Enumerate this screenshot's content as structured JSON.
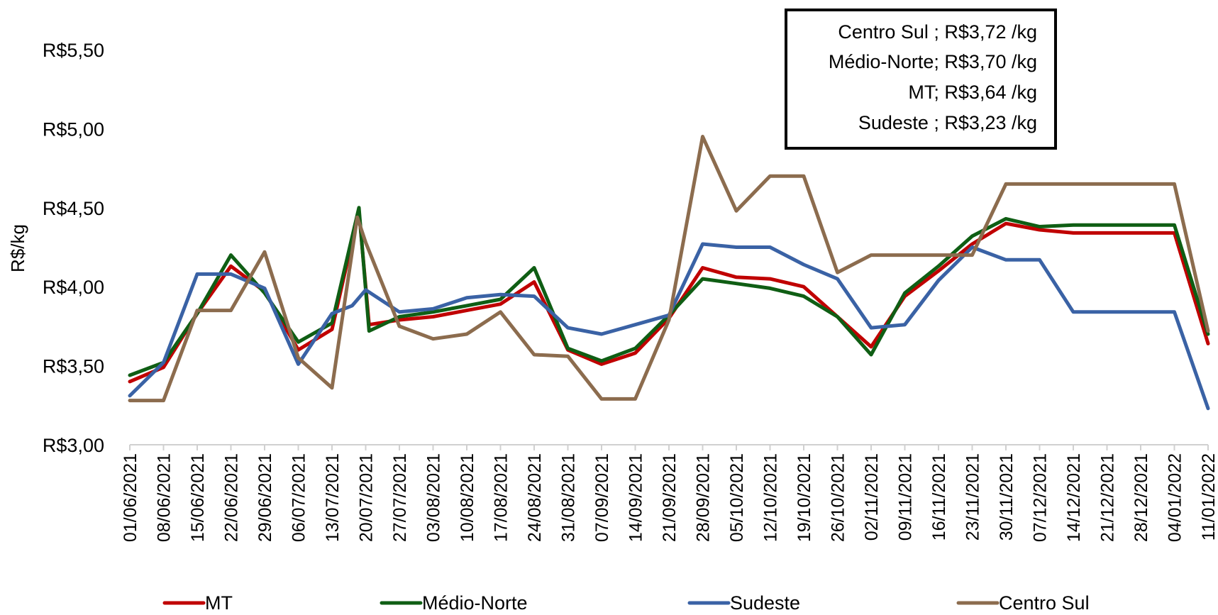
{
  "chart_data": {
    "type": "line",
    "ylabel": "R$/kg",
    "xlabel": "",
    "ylim": [
      3.0,
      5.5
    ],
    "y_ticks": [
      {
        "value": 3.0,
        "label": "R$3,00"
      },
      {
        "value": 3.5,
        "label": "R$3,50"
      },
      {
        "value": 4.0,
        "label": "R$4,00"
      },
      {
        "value": 4.5,
        "label": "R$4,50"
      },
      {
        "value": 5.0,
        "label": "R$5,00"
      },
      {
        "value": 5.5,
        "label": "R$5,50"
      }
    ],
    "categories": [
      "01/06/2021",
      "08/06/2021",
      "15/06/2021",
      "22/06/2021",
      "29/06/2021",
      "06/07/2021",
      "13/07/2021",
      "20/07/2021",
      "27/07/2021",
      "03/08/2021",
      "10/08/2021",
      "17/08/2021",
      "24/08/2021",
      "31/08/2021",
      "07/09/2021",
      "14/09/2021",
      "21/09/2021",
      "28/09/2021",
      "05/10/2021",
      "12/10/2021",
      "19/10/2021",
      "26/10/2021",
      "02/11/2021",
      "09/11/2021",
      "16/11/2021",
      "23/11/2021",
      "30/11/2021",
      "07/12/2021",
      "14/12/2021",
      "21/12/2021",
      "28/12/2021",
      "04/01/2022",
      "11/01/2022"
    ],
    "grid": false,
    "legend_position": "bottom",
    "series": [
      {
        "name": "MT",
        "color": "#c00000",
        "points": [
          [
            0,
            3.4
          ],
          [
            1,
            3.49
          ],
          [
            2,
            3.83
          ],
          [
            3,
            4.13
          ],
          [
            4,
            3.97
          ],
          [
            5,
            3.6
          ],
          [
            6,
            3.73
          ],
          [
            6.8,
            4.48
          ],
          [
            7.1,
            3.76
          ],
          [
            8,
            3.79
          ],
          [
            9,
            3.81
          ],
          [
            10,
            3.85
          ],
          [
            11,
            3.89
          ],
          [
            12,
            4.03
          ],
          [
            13,
            3.6
          ],
          [
            14,
            3.51
          ],
          [
            15,
            3.58
          ],
          [
            16,
            3.8
          ],
          [
            17,
            4.12
          ],
          [
            18,
            4.06
          ],
          [
            19,
            4.05
          ],
          [
            20,
            4.0
          ],
          [
            21,
            3.81
          ],
          [
            22,
            3.62
          ],
          [
            23,
            3.94
          ],
          [
            24,
            4.1
          ],
          [
            25,
            4.27
          ],
          [
            26,
            4.4
          ],
          [
            27,
            4.36
          ],
          [
            28,
            4.34
          ],
          [
            29,
            4.34
          ],
          [
            30,
            4.34
          ],
          [
            31,
            4.34
          ],
          [
            32,
            3.64
          ]
        ]
      },
      {
        "name": "Médio-Norte",
        "color": "#0f5e14",
        "points": [
          [
            0,
            3.44
          ],
          [
            1,
            3.52
          ],
          [
            2,
            3.83
          ],
          [
            3,
            4.2
          ],
          [
            4,
            3.96
          ],
          [
            5,
            3.65
          ],
          [
            6,
            3.77
          ],
          [
            6.8,
            4.5
          ],
          [
            7.1,
            3.72
          ],
          [
            8,
            3.81
          ],
          [
            9,
            3.84
          ],
          [
            10,
            3.88
          ],
          [
            11,
            3.92
          ],
          [
            12,
            4.12
          ],
          [
            13,
            3.61
          ],
          [
            14,
            3.53
          ],
          [
            15,
            3.61
          ],
          [
            16,
            3.82
          ],
          [
            17,
            4.05
          ],
          [
            18,
            4.02
          ],
          [
            19,
            3.99
          ],
          [
            20,
            3.94
          ],
          [
            21,
            3.81
          ],
          [
            22,
            3.57
          ],
          [
            23,
            3.96
          ],
          [
            24,
            4.13
          ],
          [
            25,
            4.32
          ],
          [
            26,
            4.43
          ],
          [
            27,
            4.38
          ],
          [
            28,
            4.39
          ],
          [
            29,
            4.39
          ],
          [
            30,
            4.39
          ],
          [
            31,
            4.39
          ],
          [
            32,
            3.7
          ]
        ]
      },
      {
        "name": "Sudeste",
        "color": "#3a62a5",
        "points": [
          [
            0,
            3.31
          ],
          [
            1,
            3.52
          ],
          [
            2,
            4.08
          ],
          [
            3,
            4.08
          ],
          [
            4,
            3.99
          ],
          [
            5,
            3.51
          ],
          [
            6,
            3.83
          ],
          [
            6.6,
            3.88
          ],
          [
            7,
            3.98
          ],
          [
            8,
            3.84
          ],
          [
            9,
            3.86
          ],
          [
            10,
            3.93
          ],
          [
            11,
            3.95
          ],
          [
            12,
            3.94
          ],
          [
            13,
            3.74
          ],
          [
            14,
            3.7
          ],
          [
            15,
            3.76
          ],
          [
            16,
            3.82
          ],
          [
            17,
            4.27
          ],
          [
            18,
            4.25
          ],
          [
            19,
            4.25
          ],
          [
            20,
            4.14
          ],
          [
            21,
            4.05
          ],
          [
            22,
            3.74
          ],
          [
            23,
            3.76
          ],
          [
            24,
            4.04
          ],
          [
            25,
            4.25
          ],
          [
            26,
            4.17
          ],
          [
            27,
            4.17
          ],
          [
            28,
            3.84
          ],
          [
            29,
            3.84
          ],
          [
            30,
            3.84
          ],
          [
            31,
            3.84
          ],
          [
            32,
            3.23
          ]
        ]
      },
      {
        "name": "Centro Sul",
        "color": "#8c6c4e",
        "points": [
          [
            0,
            3.28
          ],
          [
            1,
            3.28
          ],
          [
            2,
            3.85
          ],
          [
            3,
            3.85
          ],
          [
            4,
            4.22
          ],
          [
            5,
            3.55
          ],
          [
            6,
            3.36
          ],
          [
            6.75,
            4.44
          ],
          [
            7,
            4.28
          ],
          [
            8,
            3.75
          ],
          [
            9,
            3.67
          ],
          [
            10,
            3.7
          ],
          [
            11,
            3.84
          ],
          [
            12,
            3.57
          ],
          [
            13,
            3.56
          ],
          [
            14,
            3.29
          ],
          [
            15,
            3.29
          ],
          [
            16,
            3.79
          ],
          [
            17,
            4.95
          ],
          [
            18,
            4.48
          ],
          [
            19,
            4.7
          ],
          [
            20,
            4.7
          ],
          [
            21,
            4.09
          ],
          [
            22,
            4.2
          ],
          [
            23,
            4.2
          ],
          [
            24,
            4.2
          ],
          [
            25,
            4.2
          ],
          [
            26,
            4.65
          ],
          [
            27,
            4.65
          ],
          [
            28,
            4.65
          ],
          [
            29,
            4.65
          ],
          [
            30,
            4.65
          ],
          [
            31,
            4.65
          ],
          [
            32,
            3.72
          ]
        ]
      }
    ],
    "annotation_box": {
      "lines": [
        "Centro Sul ;  R$3,72 /kg",
        "Médio-Norte;  R$3,70 /kg",
        "MT;  R$3,64 /kg",
        "Sudeste ;  R$3,23 /kg"
      ]
    }
  }
}
